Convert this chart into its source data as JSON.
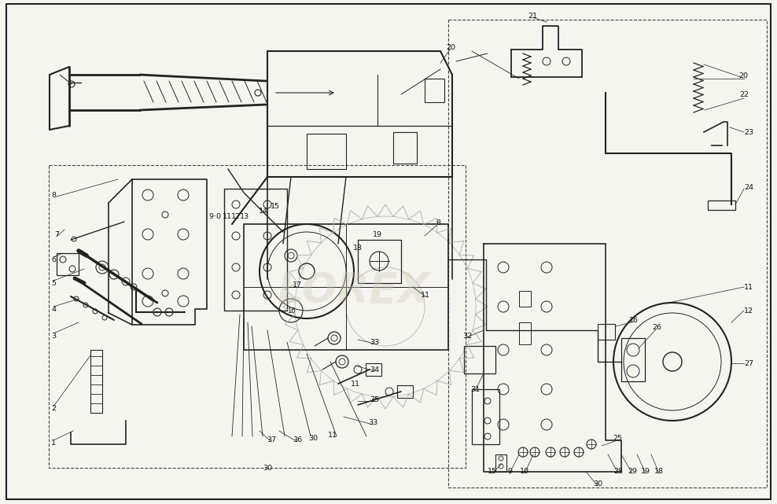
{
  "background_color": "#f5f5f0",
  "border_color": "#222222",
  "line_color": "#222222",
  "fig_width": 9.88,
  "fig_height": 6.41,
  "dpi": 100,
  "watermark_text": "LOREX",
  "watermark_color": "#ccccbb",
  "watermark_alpha": 0.35,
  "label_fontsize": 6.8,
  "label_color": "#111111"
}
